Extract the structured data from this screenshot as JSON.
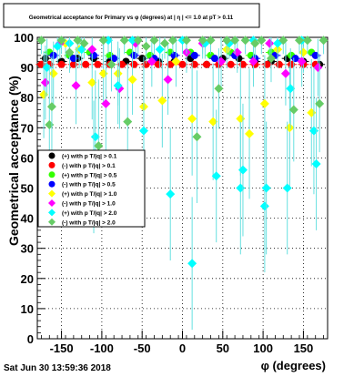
{
  "title": "Geometrical acceptance for Primary vs φ (degrees) at | η | <= 1.0 at pT > 0.11",
  "timestamp": "Sat Jun 30 13:59:36 2018",
  "colors": {
    "black": "#000000",
    "red": "#ff0000",
    "green": "#33ff00",
    "blue": "#0000ff",
    "yellow": "#ffff00",
    "magenta": "#ff00ff",
    "cyan": "#00ffff",
    "lightgreen": "#66cc66",
    "errorbar": "#66e0e0"
  },
  "chart_data": {
    "type": "scatter",
    "title": "Geometrical acceptance for Primary vs φ (degrees) at | η | <= 1.0 at pT > 0.11",
    "xlabel": "φ (degrees)",
    "ylabel": "Geometrical acceptance (%)",
    "xlim": [
      -180,
      180
    ],
    "ylim": [
      0,
      100
    ],
    "xticks": [
      -150,
      -100,
      -50,
      0,
      50,
      100,
      150
    ],
    "yticks": [
      0,
      10,
      20,
      30,
      40,
      50,
      60,
      70,
      80,
      90,
      100
    ],
    "grid": true,
    "legend_position": "left-middle",
    "series": [
      {
        "name": "(+) with p T/|q| > 0.1",
        "marker": "circle",
        "color": "black",
        "points": [
          [
            -170,
            93
          ],
          [
            -150,
            92
          ],
          [
            -130,
            93
          ],
          [
            -110,
            93
          ],
          [
            -90,
            92
          ],
          [
            -70,
            92
          ],
          [
            -50,
            93
          ],
          [
            -30,
            92
          ],
          [
            -10,
            92
          ],
          [
            10,
            93
          ],
          [
            30,
            91
          ],
          [
            50,
            93
          ],
          [
            70,
            93
          ],
          [
            90,
            92
          ],
          [
            110,
            92
          ],
          [
            130,
            93
          ],
          [
            150,
            92
          ],
          [
            170,
            91
          ]
        ]
      },
      {
        "name": "(-) with p T/|q| > 0.1",
        "marker": "circle",
        "color": "red",
        "points": [
          [
            -175,
            91
          ],
          [
            -165,
            91
          ],
          [
            -150,
            91
          ],
          [
            -135,
            91
          ],
          [
            -120,
            91
          ],
          [
            -105,
            91
          ],
          [
            -90,
            91
          ],
          [
            -75,
            91
          ],
          [
            -60,
            91
          ],
          [
            -45,
            91
          ],
          [
            -30,
            91
          ],
          [
            -15,
            91
          ],
          [
            0,
            91
          ],
          [
            15,
            91
          ],
          [
            30,
            91
          ],
          [
            45,
            91
          ],
          [
            60,
            91
          ],
          [
            75,
            91
          ],
          [
            90,
            91
          ],
          [
            105,
            91
          ],
          [
            120,
            91
          ],
          [
            135,
            91
          ],
          [
            150,
            91
          ],
          [
            165,
            91
          ]
        ]
      },
      {
        "name": "(+) with p T/|q| > 0.5",
        "marker": "circle",
        "color": "green",
        "points": [
          [
            -165,
            95
          ],
          [
            -140,
            94
          ],
          [
            -115,
            95
          ],
          [
            -90,
            94
          ],
          [
            -65,
            95
          ],
          [
            -40,
            94
          ],
          [
            -15,
            95
          ],
          [
            10,
            95
          ],
          [
            35,
            94
          ],
          [
            60,
            95
          ],
          [
            85,
            94
          ],
          [
            110,
            95
          ],
          [
            135,
            94
          ],
          [
            160,
            95
          ]
        ]
      },
      {
        "name": "(-) with p T/|q| > 0.5",
        "marker": "circle",
        "color": "blue",
        "points": [
          [
            -160,
            94
          ],
          [
            -135,
            93
          ],
          [
            -110,
            94
          ],
          [
            -85,
            93
          ],
          [
            -60,
            94
          ],
          [
            -35,
            93
          ],
          [
            -10,
            94
          ],
          [
            15,
            94
          ],
          [
            40,
            93
          ],
          [
            65,
            94
          ],
          [
            90,
            93
          ],
          [
            115,
            94
          ],
          [
            140,
            93
          ],
          [
            165,
            94
          ]
        ]
      },
      {
        "name": "(+) with p T/|q| > 1.0",
        "marker": "diamond",
        "color": "yellow",
        "points": [
          [
            -172,
            81
          ],
          [
            -160,
            88
          ],
          [
            -145,
            98
          ],
          [
            -128,
            96
          ],
          [
            -112,
            85
          ],
          [
            -98,
            88
          ],
          [
            -80,
            88
          ],
          [
            -62,
            86
          ],
          [
            -48,
            77
          ],
          [
            -25,
            79
          ],
          [
            -8,
            92
          ],
          [
            12,
            73
          ],
          [
            38,
            72
          ],
          [
            55,
            96
          ],
          [
            72,
            73
          ],
          [
            83,
            68
          ],
          [
            102,
            78
          ],
          [
            118,
            96
          ],
          [
            133,
            70
          ],
          [
            150,
            95
          ],
          [
            160,
            75
          ]
        ]
      },
      {
        "name": "(-) with p T/|q| > 1.0",
        "marker": "diamond",
        "color": "magenta",
        "points": [
          [
            -170,
            85
          ],
          [
            -152,
            98
          ],
          [
            -132,
            84
          ],
          [
            -112,
            96
          ],
          [
            -95,
            78
          ],
          [
            -78,
            83
          ],
          [
            -58,
            98
          ],
          [
            -38,
            92
          ],
          [
            -18,
            86
          ],
          [
            5,
            95
          ],
          [
            25,
            98
          ],
          [
            48,
            92
          ],
          [
            68,
            95
          ],
          [
            88,
            92
          ],
          [
            108,
            98
          ],
          [
            128,
            88
          ],
          [
            148,
            92
          ],
          [
            168,
            90
          ]
        ]
      },
      {
        "name": "(+) with p T/|q| > 2.0",
        "marker": "diamond",
        "color": "cyan",
        "points": [
          [
            -168,
            90
          ],
          [
            -155,
            97
          ],
          [
            -140,
            98
          ],
          [
            -125,
            96
          ],
          [
            -108,
            67
          ],
          [
            -92,
            99
          ],
          [
            -80,
            84
          ],
          [
            -62,
            99
          ],
          [
            -48,
            69
          ],
          [
            -28,
            96
          ],
          [
            -15,
            48
          ],
          [
            0,
            99
          ],
          [
            12,
            25
          ],
          [
            28,
            98
          ],
          [
            42,
            54
          ],
          [
            58,
            98
          ],
          [
            72,
            50
          ],
          [
            75,
            56
          ],
          [
            88,
            99
          ],
          [
            102,
            44
          ],
          [
            104,
            50
          ],
          [
            118,
            98
          ],
          [
            130,
            50
          ],
          [
            134,
            83
          ],
          [
            148,
            99
          ],
          [
            163,
            69
          ],
          [
            166,
            58
          ]
        ]
      },
      {
        "name": "(-) with p T/|q| > 2.0",
        "marker": "diamond",
        "color": "lightgreen",
        "points": [
          [
            -175,
            99
          ],
          [
            -165,
            71
          ],
          [
            -162,
            77
          ],
          [
            -150,
            99
          ],
          [
            -140,
            95
          ],
          [
            -130,
            99
          ],
          [
            -122,
            98
          ],
          [
            -110,
            57
          ],
          [
            -104,
            64
          ],
          [
            -98,
            99
          ],
          [
            -88,
            91
          ],
          [
            -72,
            99
          ],
          [
            -68,
            72
          ],
          [
            -55,
            99
          ],
          [
            -45,
            97
          ],
          [
            -35,
            99
          ],
          [
            -22,
            98
          ],
          [
            -12,
            99
          ],
          [
            5,
            99
          ],
          [
            18,
            67
          ],
          [
            25,
            99
          ],
          [
            35,
            99
          ],
          [
            45,
            83
          ],
          [
            55,
            99
          ],
          [
            65,
            99
          ],
          [
            78,
            99
          ],
          [
            90,
            98
          ],
          [
            98,
            99
          ],
          [
            110,
            93
          ],
          [
            125,
            99
          ],
          [
            138,
            76
          ],
          [
            145,
            99
          ],
          [
            155,
            99
          ],
          [
            170,
            78
          ],
          [
            175,
            99
          ]
        ]
      }
    ]
  }
}
